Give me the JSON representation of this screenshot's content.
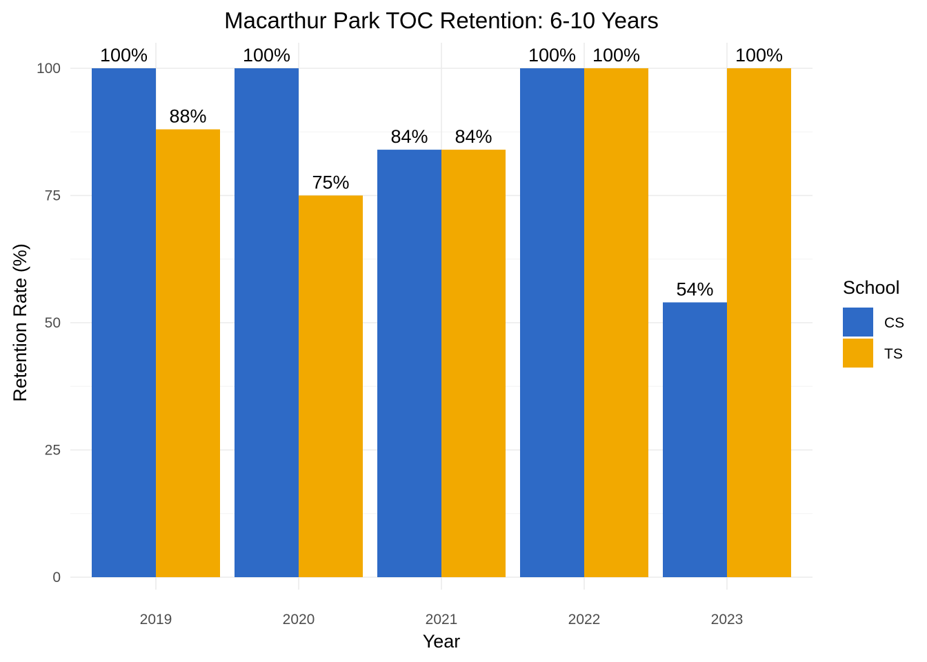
{
  "chart_data": {
    "type": "bar",
    "title": "Macarthur Park TOC Retention: 6-10 Years",
    "xlabel": "Year",
    "ylabel": "Retention Rate (%)",
    "categories": [
      "2019",
      "2020",
      "2021",
      "2022",
      "2023"
    ],
    "series": [
      {
        "name": "CS",
        "color": "#2E6AC6",
        "values": [
          100,
          100,
          84,
          100,
          54
        ],
        "labels": [
          "100%",
          "100%",
          "84%",
          "100%",
          "54%"
        ]
      },
      {
        "name": "TS",
        "color": "#F2A900",
        "values": [
          88,
          75,
          84,
          100,
          100
        ],
        "labels": [
          "88%",
          "75%",
          "84%",
          "100%",
          "100%"
        ]
      }
    ],
    "ylim": [
      0,
      100
    ],
    "yticks": [
      0,
      25,
      50,
      75,
      100
    ],
    "ytick_labels": [
      "0",
      "25",
      "50",
      "75",
      "100"
    ],
    "grid": true,
    "legend": {
      "title": "School",
      "position": "right"
    }
  }
}
